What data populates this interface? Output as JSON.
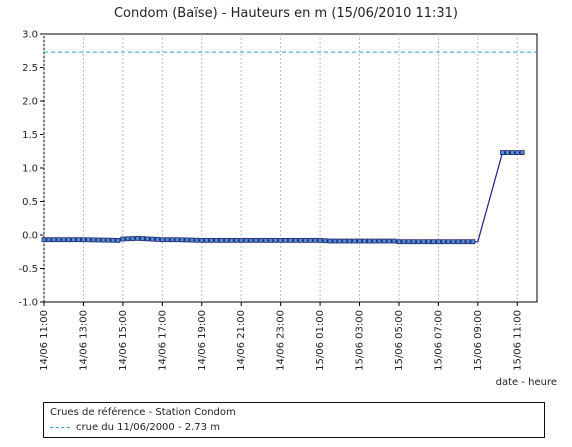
{
  "chart_data": {
    "type": "line",
    "title": "Condom (Baïse) - Hauteurs en m (15/06/2010 11:31)",
    "xlabel": "date - heure",
    "ylabel": "",
    "ylim": [
      -1.0,
      3.0
    ],
    "yticks": [
      "3.0",
      "2.5",
      "2.0",
      "1.5",
      "1.0",
      "0.5",
      "0.0",
      "-0.5",
      "-1.0"
    ],
    "ytick_values": [
      3.0,
      2.5,
      2.0,
      1.5,
      1.0,
      0.5,
      0.0,
      -0.5,
      -1.0
    ],
    "xlim": [
      "14/06 11:00",
      "15/06 12:00"
    ],
    "xticks": [
      "14/06 11:00",
      "14/06 13:00",
      "14/06 15:00",
      "14/06 17:00",
      "14/06 19:00",
      "14/06 21:00",
      "14/06 23:00",
      "15/06 01:00",
      "15/06 03:00",
      "15/06 05:00",
      "15/06 07:00",
      "15/06 09:00",
      "15/06 11:00"
    ],
    "grid": "vertical-dashed",
    "series": [
      {
        "color": "#1a1f8c",
        "marker_color": "#4f8fd6",
        "x": [
          "14/06 11:00",
          "14/06 13:00",
          "14/06 14:45",
          "14/06 15:00",
          "14/06 15:45",
          "14/06 17:00",
          "14/06 17:45",
          "14/06 19:00",
          "14/06 19:45",
          "14/06 21:00",
          "14/06 23:00",
          "15/06 01:00",
          "15/06 01:30",
          "15/06 03:00",
          "15/06 04:45",
          "15/06 05:00",
          "15/06 07:00",
          "15/06 09:00",
          "15/06 10:15",
          "15/06 11:15"
        ],
        "values": [
          -0.07,
          -0.07,
          -0.08,
          -0.06,
          -0.05,
          -0.07,
          -0.07,
          -0.08,
          -0.08,
          -0.08,
          -0.08,
          -0.08,
          -0.09,
          -0.09,
          -0.09,
          -0.1,
          -0.1,
          -0.1,
          1.23,
          1.23
        ]
      }
    ],
    "reference_lines": [
      {
        "value": 2.73,
        "color": "#2aa6c4",
        "label": "crue du 11/06/2000 - 2.73 m"
      }
    ],
    "legend": {
      "title": "Crues de référence - Station Condom",
      "placement": "bottom"
    }
  }
}
